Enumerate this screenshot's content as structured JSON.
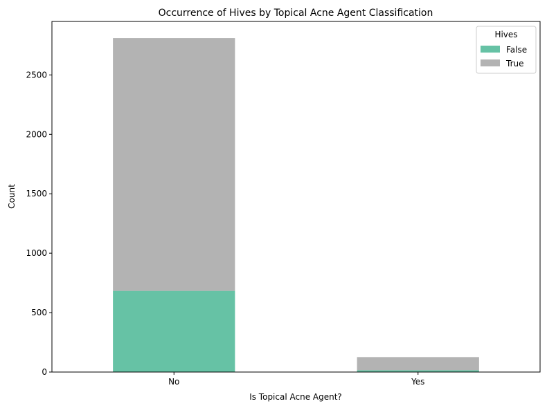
{
  "chart_data": {
    "type": "bar",
    "stacked": true,
    "title": "Occurrence of Hives by Topical Acne Agent Classification",
    "xlabel": "Is Topical Acne Agent?",
    "ylabel": "Count",
    "categories": [
      "No",
      "Yes"
    ],
    "series": [
      {
        "name": "False",
        "values": [
          683,
          15
        ],
        "color": "#66c2a5"
      },
      {
        "name": "True",
        "values": [
          2127,
          111
        ],
        "color": "#b3b3b3"
      }
    ],
    "ylim": [
      0,
      2950
    ],
    "yticks": [
      0,
      500,
      1000,
      1500,
      2000,
      2500
    ],
    "legend": {
      "title": "Hives",
      "placement": "top-right"
    },
    "grid": false
  }
}
